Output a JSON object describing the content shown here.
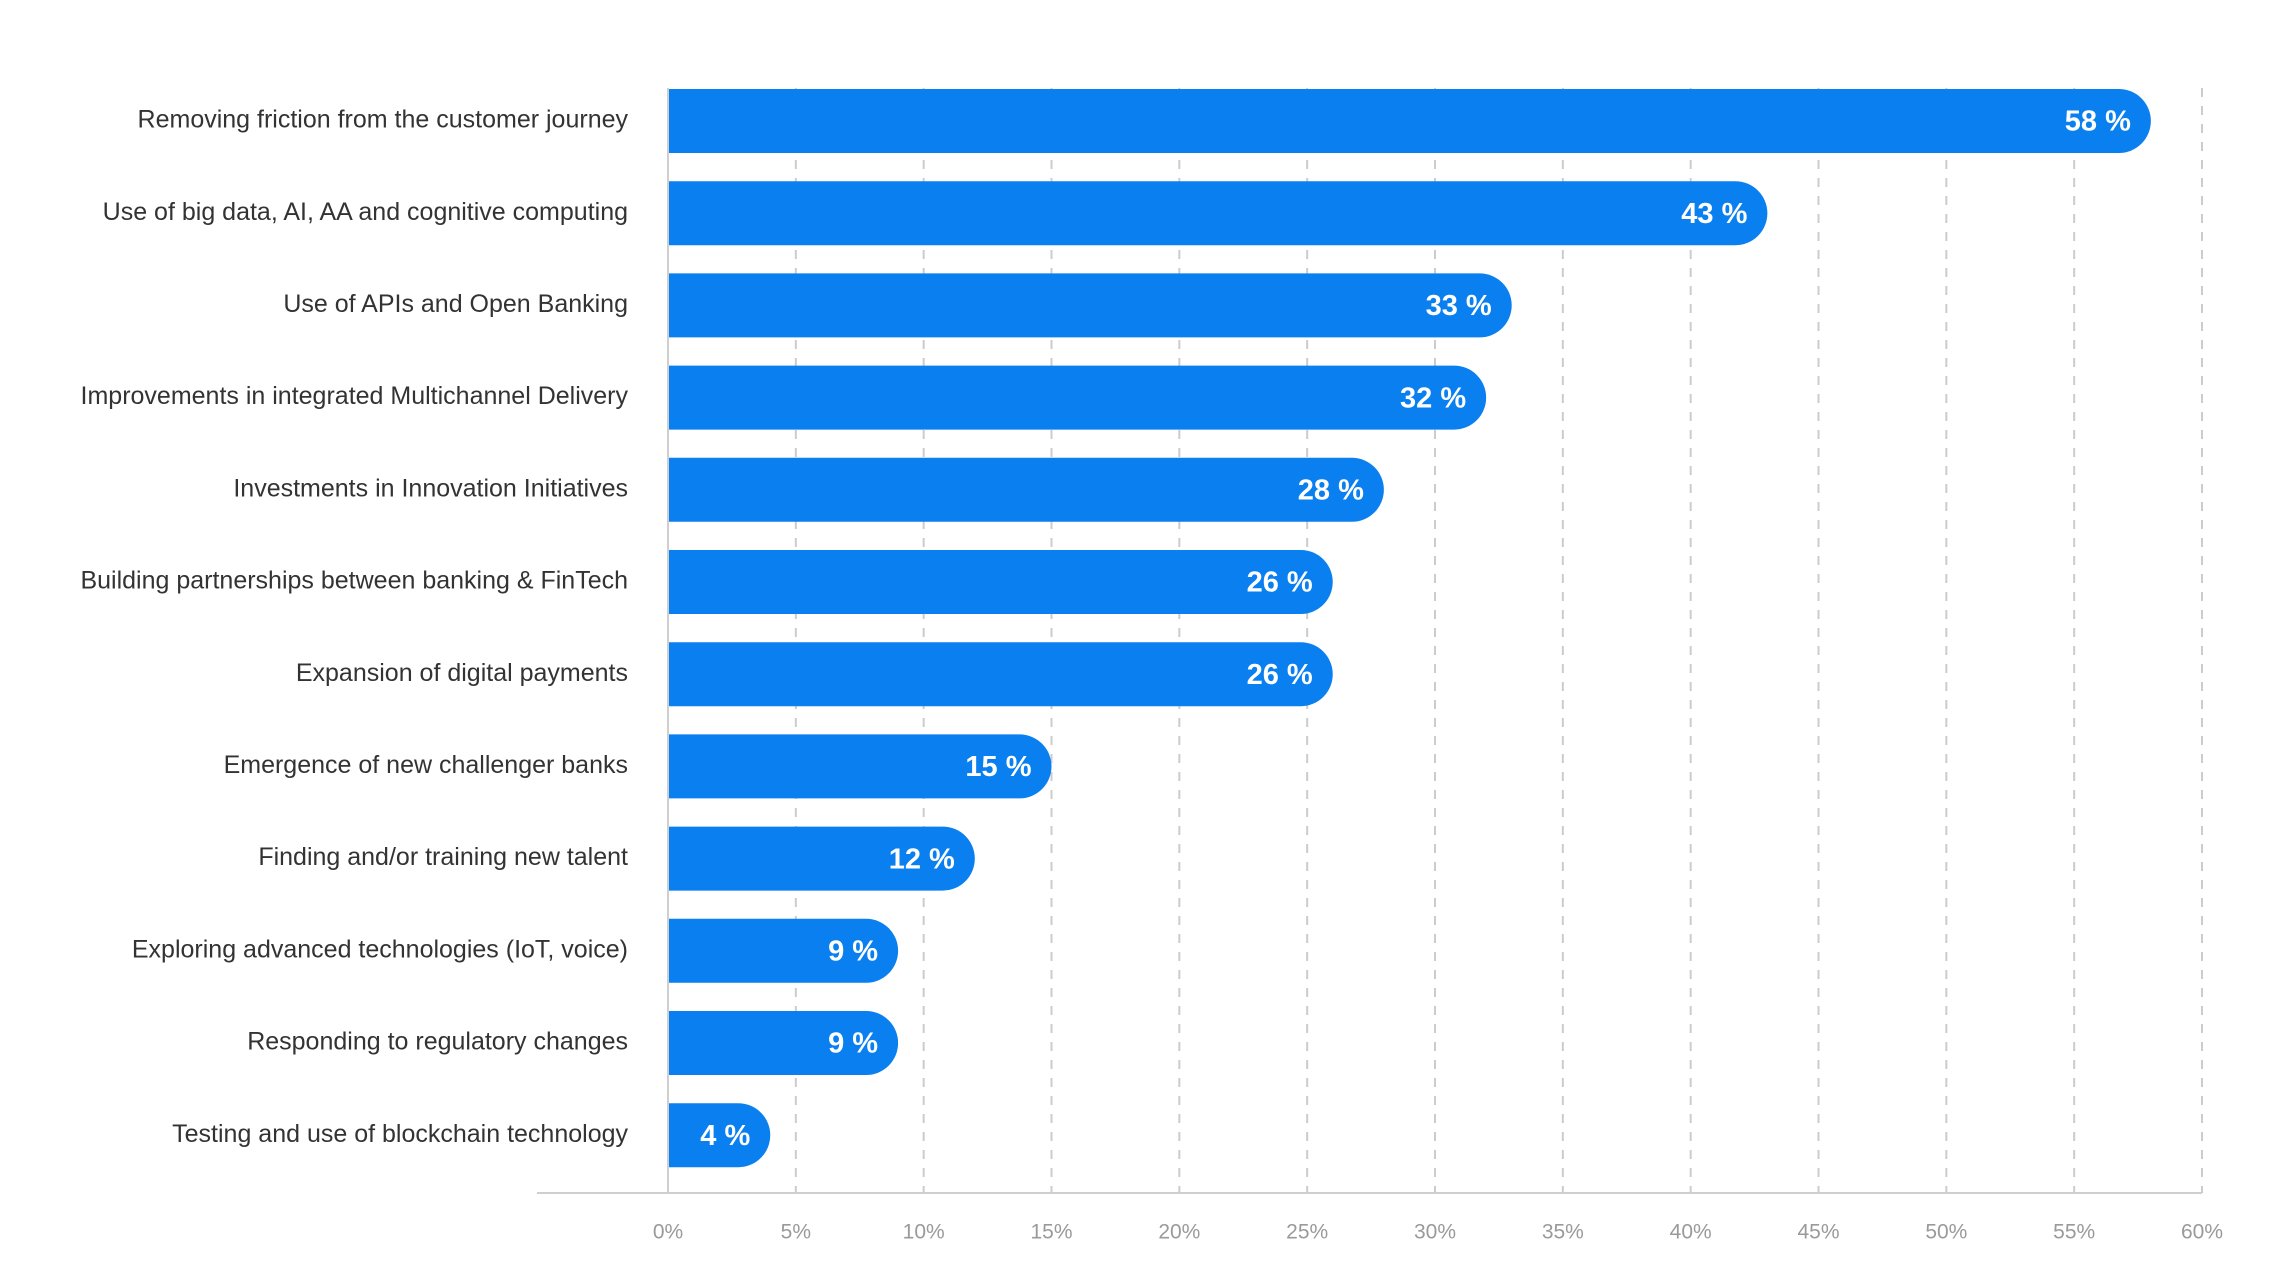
{
  "chart_data": {
    "type": "bar",
    "orientation": "horizontal",
    "title": "",
    "xlabel": "",
    "ylabel": "",
    "categories": [
      "Removing friction from the customer journey",
      "Use of big data, AI, AA and cognitive computing",
      "Use of APIs and Open Banking",
      "Improvements in integrated Multichannel Delivery",
      "Investments in Innovation Initiatives",
      "Building partnerships between banking & FinTech",
      "Expansion of digital payments",
      "Emergence of new challenger banks",
      "Finding and/or training new talent",
      "Exploring advanced technologies (IoT, voice)",
      "Responding to regulatory changes",
      "Testing and use of blockchain technology"
    ],
    "values": [
      58,
      43,
      33,
      32,
      28,
      26,
      26,
      15,
      12,
      9,
      9,
      4
    ],
    "value_labels": [
      "58 %",
      "43 %",
      "33 %",
      "32 %",
      "28 %",
      "26 %",
      "26 %",
      "15 %",
      "12 %",
      "9 %",
      "9 %",
      "4 %"
    ],
    "xlim": [
      0,
      60
    ],
    "x_ticks": [
      0,
      5,
      10,
      15,
      20,
      25,
      30,
      35,
      40,
      45,
      50,
      55,
      60
    ],
    "x_tick_labels": [
      "0%",
      "5%",
      "10%",
      "15%",
      "20%",
      "25%",
      "30%",
      "35%",
      "40%",
      "45%",
      "50%",
      "55%",
      "60%"
    ],
    "grid": true,
    "legend": "none",
    "bar_color": "#0a7ff0"
  }
}
